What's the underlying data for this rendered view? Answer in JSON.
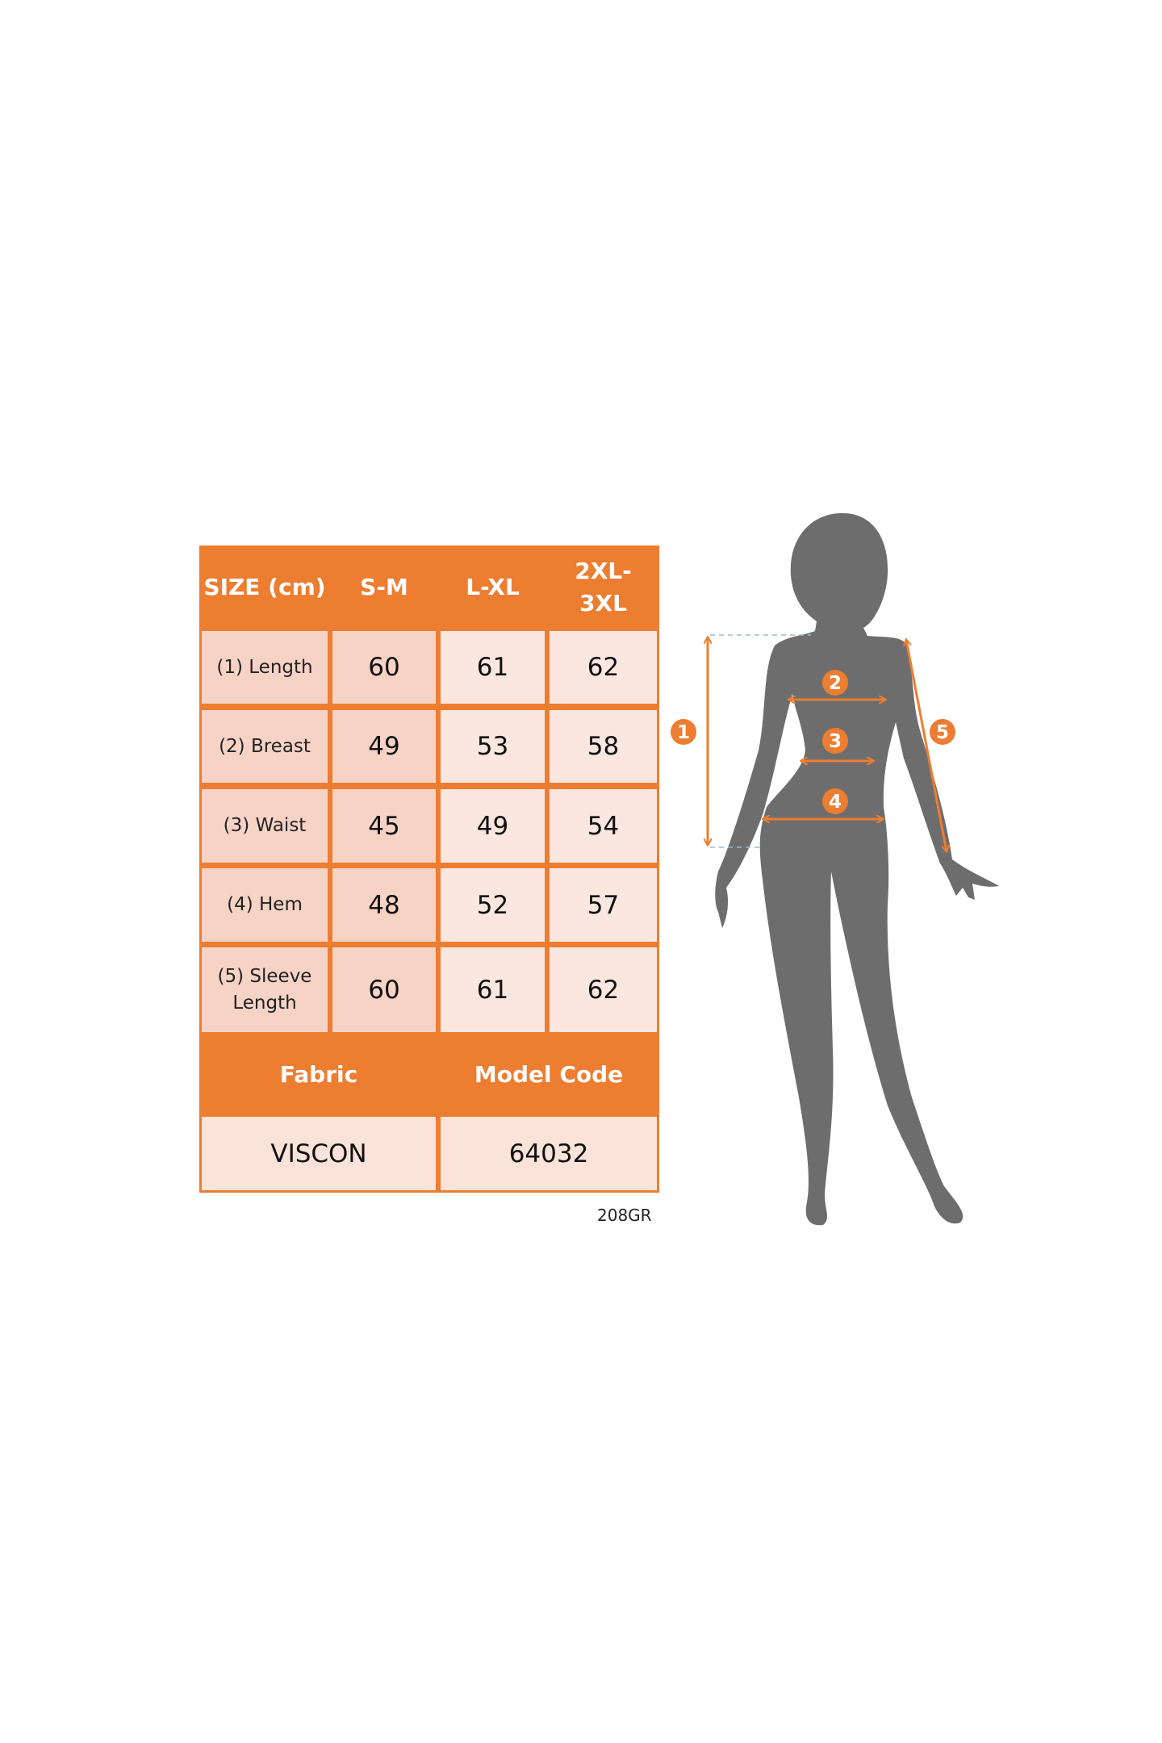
{
  "table": {
    "header": [
      "SIZE (cm)",
      "S-M",
      "L-XL",
      "2XL-3XL"
    ],
    "rows": [
      {
        "label": "(1) Length",
        "values": [
          "60",
          "61",
          "62"
        ]
      },
      {
        "label": "(2) Breast",
        "values": [
          "49",
          "53",
          "58"
        ]
      },
      {
        "label": "(3) Waist",
        "values": [
          "45",
          "49",
          "54"
        ]
      },
      {
        "label": "(4) Hem",
        "values": [
          "48",
          "52",
          "57"
        ]
      },
      {
        "label": "(5) Sleeve Length",
        "values": [
          "60",
          "61",
          "62"
        ]
      }
    ],
    "footer_header": [
      "Fabric",
      "Model Code"
    ],
    "footer_values": [
      "VISCON",
      "64032"
    ]
  },
  "code": "208GR",
  "figure": {
    "markers": [
      "1",
      "2",
      "3",
      "4",
      "5"
    ]
  },
  "colors": {
    "accent": "#ed7d31",
    "label_fill": "#f7d3c6",
    "value_fill": "#fbe7e0",
    "silhouette": "#6d6d6d"
  }
}
